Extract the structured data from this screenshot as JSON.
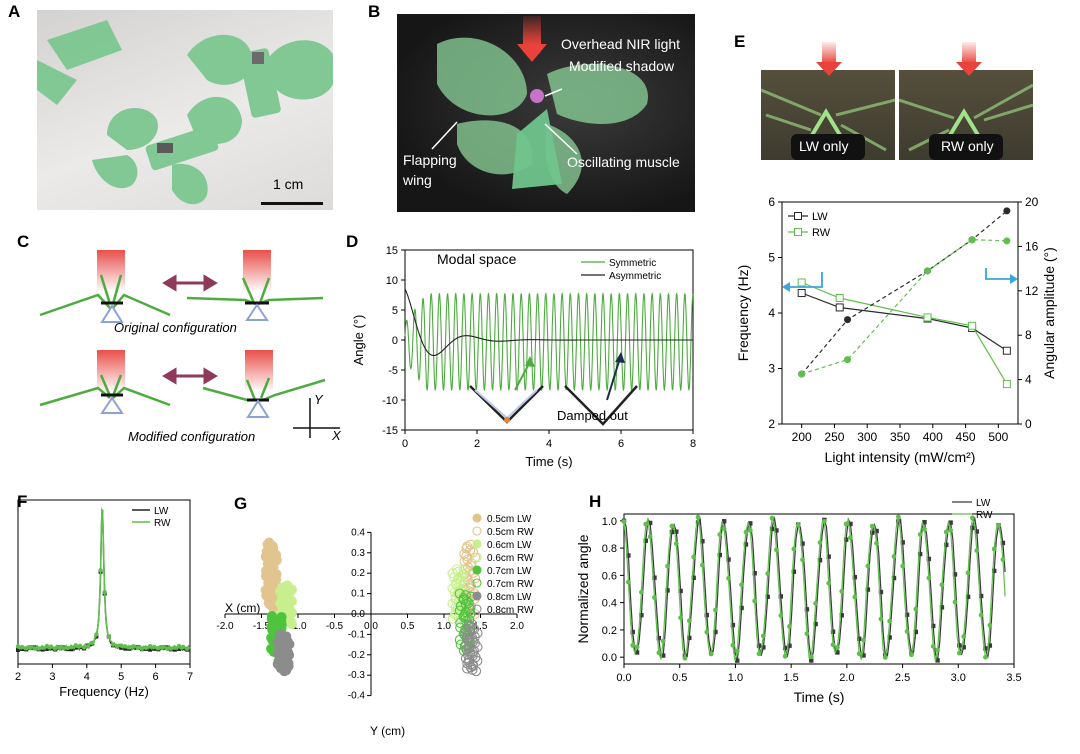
{
  "panels": {
    "A": {
      "label": "A",
      "scale_bar": "1 cm"
    },
    "B": {
      "label": "B",
      "ann": [
        "Overhead NIR light",
        "Modified shadow",
        "Flapping",
        "wing",
        "Oscillating muscle"
      ]
    },
    "C": {
      "label": "C",
      "captions": [
        "Original configuration",
        "Modified configuration"
      ],
      "axes": {
        "y": "Y",
        "x": "X"
      }
    },
    "D": {
      "label": "D",
      "title": "Modal space",
      "ann": "Damped out"
    },
    "E": {
      "label": "E",
      "photo_labels": [
        "LW only",
        "RW only"
      ]
    },
    "F": {
      "label": "F"
    },
    "G": {
      "label": "G",
      "x_axis_title": "X (cm)",
      "y_axis_title": "Y (cm)"
    },
    "H": {
      "label": "H"
    }
  },
  "colors": {
    "green": "#4dab3f",
    "dark": "#2a2a2a",
    "light_green": "#7fd36a",
    "arrow_red": "#e8423a",
    "accent_blue": "#3aa6dd",
    "photo_green": "#7ec68c"
  },
  "chart_data": [
    {
      "id": "D",
      "type": "line",
      "xlabel": "Time (s)",
      "ylabel": "Angle (°)",
      "xlim": [
        0,
        8
      ],
      "ylim": [
        -15,
        15
      ],
      "xticks": [
        0,
        2,
        4,
        6,
        8
      ],
      "yticks": [
        -15,
        -10,
        -5,
        0,
        5,
        10,
        15
      ],
      "legend_position": "top-right",
      "series": [
        {
          "name": "Symmetric",
          "color": "#4dab3f",
          "amplitude": 8,
          "frequency_hz": 4.4
        },
        {
          "name": "Asymmetric",
          "color": "#222222",
          "amplitude": 8.5,
          "frequency_hz": 0.55,
          "damping": 1.4
        }
      ]
    },
    {
      "id": "E",
      "type": "line",
      "xlabel": "Light intensity (mW/cm²)",
      "ylabel": "Frequency (Hz)",
      "y2label": "Angular amplitude (°)",
      "xlim": [
        170,
        530
      ],
      "ylim": [
        2,
        6
      ],
      "y2lim": [
        0,
        20
      ],
      "xticks": [
        200,
        250,
        300,
        350,
        400,
        450,
        500
      ],
      "yticks": [
        2,
        3,
        4,
        5,
        6
      ],
      "y2ticks": [
        0,
        4,
        8,
        12,
        16,
        20
      ],
      "legend_position": "top-left",
      "series": [
        {
          "name": "LW",
          "axis": "left",
          "color": "#2a2a2a",
          "marker": "open-square",
          "x": [
            200,
            258,
            392,
            460,
            513
          ],
          "y": [
            4.36,
            4.1,
            3.9,
            3.73,
            3.32
          ]
        },
        {
          "name": "RW",
          "axis": "left",
          "color": "#5fbf4c",
          "marker": "open-square",
          "x": [
            200,
            258,
            392,
            460,
            513
          ],
          "y": [
            4.55,
            4.27,
            3.92,
            3.77,
            2.72
          ]
        },
        {
          "name": "",
          "axis": "right",
          "color": "#2a2a2a",
          "marker": "filled-circle",
          "dash": true,
          "x": [
            200,
            270,
            392,
            460,
            513
          ],
          "y": [
            4.5,
            9.4,
            13.8,
            16.6,
            19.2
          ]
        },
        {
          "name": "",
          "axis": "right",
          "color": "#5fbf4c",
          "marker": "filled-circle",
          "dash": true,
          "x": [
            200,
            270,
            392,
            460,
            513
          ],
          "y": [
            4.5,
            5.8,
            13.8,
            16.6,
            16.5
          ]
        }
      ]
    },
    {
      "id": "F",
      "type": "line",
      "xlabel": "Frequency (Hz)",
      "xlim": [
        2,
        7
      ],
      "xticks": [
        2,
        3,
        4,
        5,
        6,
        7
      ],
      "legend_position": "top-right",
      "peak": 4.45,
      "series": [
        {
          "name": "LW",
          "color": "#222222"
        },
        {
          "name": "RW",
          "color": "#5fbf4c"
        }
      ]
    },
    {
      "id": "G",
      "type": "scatter",
      "xlim": [
        -2.0,
        2.0
      ],
      "ylim": [
        -0.4,
        0.4
      ],
      "xticks": [
        "-2.0",
        "-1.5",
        "-1.0",
        "-0.5",
        "0.0",
        "0.5",
        "1.0",
        "1.5",
        "2.0"
      ],
      "yticks": [
        "0.4",
        "0.3",
        "0.2",
        "0.1",
        "0.0",
        "-0.1",
        "-0.2",
        "-0.3",
        "-0.4"
      ],
      "legend_position": "top-right",
      "series": [
        {
          "name": "0.5cm LW",
          "color": "#e2c48f",
          "filled": true,
          "x": -1.37,
          "y": [
            0.03,
            0.35
          ]
        },
        {
          "name": "0.5cm RW",
          "color": "#e2c48f",
          "filled": false,
          "x": 1.34,
          "y": [
            0.0,
            0.34
          ]
        },
        {
          "name": "0.6cm LW",
          "color": "#c7ef8e",
          "filled": true,
          "x": -1.17,
          "y": [
            -0.05,
            0.14
          ]
        },
        {
          "name": "0.6cm RW",
          "color": "#c7ef8e",
          "filled": false,
          "x": 1.2,
          "y": [
            -0.03,
            0.22
          ]
        },
        {
          "name": "0.7cm LW",
          "color": "#4ec43d",
          "filled": true,
          "x": -1.28,
          "y": [
            -0.19,
            -0.01
          ]
        },
        {
          "name": "0.7cm RW",
          "color": "#4ec43d",
          "filled": false,
          "x": 1.3,
          "y": [
            -0.18,
            0.1
          ]
        },
        {
          "name": "0.8cm LW",
          "color": "#8c8c8c",
          "filled": true,
          "x": -1.2,
          "y": [
            -0.28,
            -0.1
          ]
        },
        {
          "name": "0.8cm RW",
          "color": "#8c8c8c",
          "filled": false,
          "x": 1.37,
          "y": [
            -0.28,
            -0.05
          ]
        }
      ]
    },
    {
      "id": "H",
      "type": "line",
      "xlabel": "Time (s)",
      "ylabel": "Normalized angle",
      "xlim": [
        0,
        3.5
      ],
      "ylim": [
        -0.05,
        1.05
      ],
      "xticks": [
        "0.0",
        "0.5",
        "1.0",
        "1.5",
        "2.0",
        "2.5",
        "3.0",
        "3.5"
      ],
      "yticks": [
        "0.0",
        "0.2",
        "0.4",
        "0.6",
        "0.8",
        "1.0"
      ],
      "legend_position": "top-right",
      "frequency_hz": 4.45,
      "series": [
        {
          "name": "LW",
          "color": "#3a3a3a"
        },
        {
          "name": "RW",
          "color": "#5fbf4c"
        }
      ]
    }
  ]
}
